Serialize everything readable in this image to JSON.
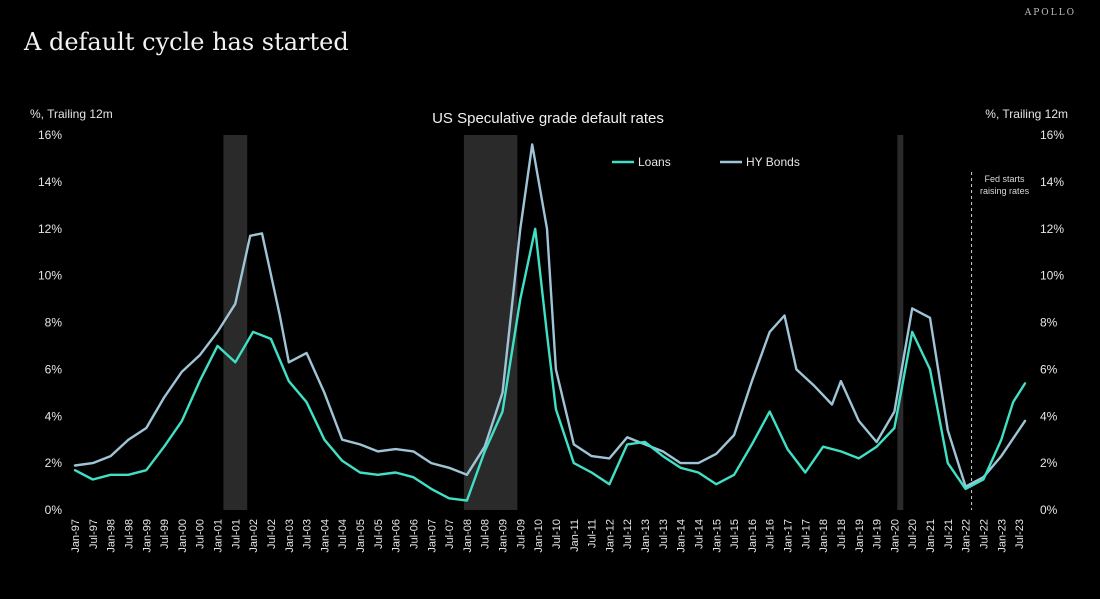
{
  "header": {
    "brand": "APOLLO",
    "headline": "A default cycle has started"
  },
  "chart_data": {
    "type": "line",
    "title": "US Speculative grade default rates",
    "ylabel_left": "%, Trailing 12m",
    "ylabel_right": "%, Trailing 12m",
    "ylim": [
      0,
      16
    ],
    "yticks": [
      "0%",
      "2%",
      "4%",
      "6%",
      "8%",
      "10%",
      "12%",
      "14%",
      "16%"
    ],
    "x_tick_labels": [
      "Jan-97",
      "Jul-97",
      "Jan-98",
      "Jul-98",
      "Jan-99",
      "Jul-99",
      "Jan-00",
      "Jul-00",
      "Jan-01",
      "Jul-01",
      "Jan-02",
      "Jul-02",
      "Jan-03",
      "Jul-03",
      "Jan-04",
      "Jul-04",
      "Jan-05",
      "Jul-05",
      "Jan-06",
      "Jul-06",
      "Jan-07",
      "Jul-07",
      "Jan-08",
      "Jul-08",
      "Jan-09",
      "Jul-09",
      "Jan-10",
      "Jul-10",
      "Jan-11",
      "Jul-11",
      "Jan-12",
      "Jul-12",
      "Jan-13",
      "Jul-13",
      "Jan-14",
      "Jul-14",
      "Jan-15",
      "Jul-15",
      "Jan-16",
      "Jul-16",
      "Jan-17",
      "Jul-17",
      "Jan-18",
      "Jul-18",
      "Jan-19",
      "Jul-19",
      "Jan-20",
      "Jul-20",
      "Jan-21",
      "Jul-21",
      "Jan-22",
      "Jul-22",
      "Jan-23",
      "Jul-23"
    ],
    "x_range": [
      "1997-01",
      "2023-09"
    ],
    "legend_position": "top-center",
    "colors": {
      "loans": "#3fe0c5",
      "bonds": "#9fc4d6",
      "shading": "#2a2a2a",
      "background": "#000000"
    },
    "recessions": [
      {
        "start": "2001-03",
        "end": "2001-11"
      },
      {
        "start": "2007-12",
        "end": "2009-06"
      },
      {
        "start": "2020-02",
        "end": "2020-04"
      }
    ],
    "annotation": {
      "date": "2022-03",
      "text_lines": [
        "Fed starts",
        "raising rates"
      ]
    },
    "series": [
      {
        "name": "Loans",
        "points": [
          [
            "1997-01",
            1.7
          ],
          [
            "1997-07",
            1.3
          ],
          [
            "1998-01",
            1.5
          ],
          [
            "1998-07",
            1.5
          ],
          [
            "1999-01",
            1.7
          ],
          [
            "1999-07",
            2.7
          ],
          [
            "2000-01",
            3.8
          ],
          [
            "2000-07",
            5.5
          ],
          [
            "2001-01",
            7.0
          ],
          [
            "2001-07",
            6.3
          ],
          [
            "2002-01",
            7.6
          ],
          [
            "2002-07",
            7.3
          ],
          [
            "2003-01",
            5.5
          ],
          [
            "2003-07",
            4.6
          ],
          [
            "2004-01",
            3.0
          ],
          [
            "2004-07",
            2.1
          ],
          [
            "2005-01",
            1.6
          ],
          [
            "2005-07",
            1.5
          ],
          [
            "2006-01",
            1.6
          ],
          [
            "2006-07",
            1.4
          ],
          [
            "2007-01",
            0.9
          ],
          [
            "2007-07",
            0.5
          ],
          [
            "2008-01",
            0.4
          ],
          [
            "2008-07",
            2.5
          ],
          [
            "2009-01",
            4.2
          ],
          [
            "2009-07",
            9.0
          ],
          [
            "2009-12",
            12.0
          ],
          [
            "2010-04",
            7.5
          ],
          [
            "2010-07",
            4.3
          ],
          [
            "2011-01",
            2.0
          ],
          [
            "2011-07",
            1.6
          ],
          [
            "2012-01",
            1.1
          ],
          [
            "2012-07",
            2.8
          ],
          [
            "2013-01",
            2.9
          ],
          [
            "2013-07",
            2.3
          ],
          [
            "2014-01",
            1.8
          ],
          [
            "2014-07",
            1.6
          ],
          [
            "2015-01",
            1.1
          ],
          [
            "2015-07",
            1.5
          ],
          [
            "2016-01",
            2.8
          ],
          [
            "2016-07",
            4.2
          ],
          [
            "2017-01",
            2.6
          ],
          [
            "2017-07",
            1.6
          ],
          [
            "2018-01",
            2.7
          ],
          [
            "2018-07",
            2.5
          ],
          [
            "2019-01",
            2.2
          ],
          [
            "2019-07",
            2.7
          ],
          [
            "2020-01",
            3.5
          ],
          [
            "2020-07",
            7.6
          ],
          [
            "2021-01",
            6.0
          ],
          [
            "2021-07",
            2.0
          ],
          [
            "2022-01",
            0.9
          ],
          [
            "2022-07",
            1.3
          ],
          [
            "2023-01",
            3.0
          ],
          [
            "2023-05",
            4.6
          ],
          [
            "2023-09",
            5.4
          ]
        ]
      },
      {
        "name": "HY Bonds",
        "points": [
          [
            "1997-01",
            1.9
          ],
          [
            "1997-07",
            2.0
          ],
          [
            "1998-01",
            2.3
          ],
          [
            "1998-07",
            3.0
          ],
          [
            "1999-01",
            3.5
          ],
          [
            "1999-07",
            4.8
          ],
          [
            "2000-01",
            5.9
          ],
          [
            "2000-07",
            6.6
          ],
          [
            "2001-01",
            7.6
          ],
          [
            "2001-07",
            8.8
          ],
          [
            "2001-12",
            11.7
          ],
          [
            "2002-04",
            11.8
          ],
          [
            "2002-10",
            8.3
          ],
          [
            "2003-01",
            6.3
          ],
          [
            "2003-07",
            6.7
          ],
          [
            "2004-01",
            5.0
          ],
          [
            "2004-07",
            3.0
          ],
          [
            "2005-01",
            2.8
          ],
          [
            "2005-07",
            2.5
          ],
          [
            "2006-01",
            2.6
          ],
          [
            "2006-07",
            2.5
          ],
          [
            "2007-01",
            2.0
          ],
          [
            "2007-07",
            1.8
          ],
          [
            "2008-01",
            1.5
          ],
          [
            "2008-07",
            2.7
          ],
          [
            "2009-01",
            5.0
          ],
          [
            "2009-07",
            12.0
          ],
          [
            "2009-11",
            15.6
          ],
          [
            "2010-04",
            12.0
          ],
          [
            "2010-07",
            6.0
          ],
          [
            "2011-01",
            2.8
          ],
          [
            "2011-07",
            2.3
          ],
          [
            "2012-01",
            2.2
          ],
          [
            "2012-07",
            3.1
          ],
          [
            "2013-01",
            2.8
          ],
          [
            "2013-07",
            2.5
          ],
          [
            "2014-01",
            2.0
          ],
          [
            "2014-07",
            2.0
          ],
          [
            "2015-01",
            2.4
          ],
          [
            "2015-07",
            3.2
          ],
          [
            "2016-01",
            5.5
          ],
          [
            "2016-07",
            7.6
          ],
          [
            "2016-12",
            8.3
          ],
          [
            "2017-04",
            6.0
          ],
          [
            "2017-10",
            5.3
          ],
          [
            "2018-04",
            4.5
          ],
          [
            "2018-07",
            5.5
          ],
          [
            "2019-01",
            3.8
          ],
          [
            "2019-07",
            2.9
          ],
          [
            "2020-01",
            4.2
          ],
          [
            "2020-07",
            8.6
          ],
          [
            "2021-01",
            8.2
          ],
          [
            "2021-07",
            3.4
          ],
          [
            "2022-01",
            1.0
          ],
          [
            "2022-07",
            1.4
          ],
          [
            "2023-01",
            2.3
          ],
          [
            "2023-09",
            3.8
          ]
        ]
      }
    ]
  }
}
